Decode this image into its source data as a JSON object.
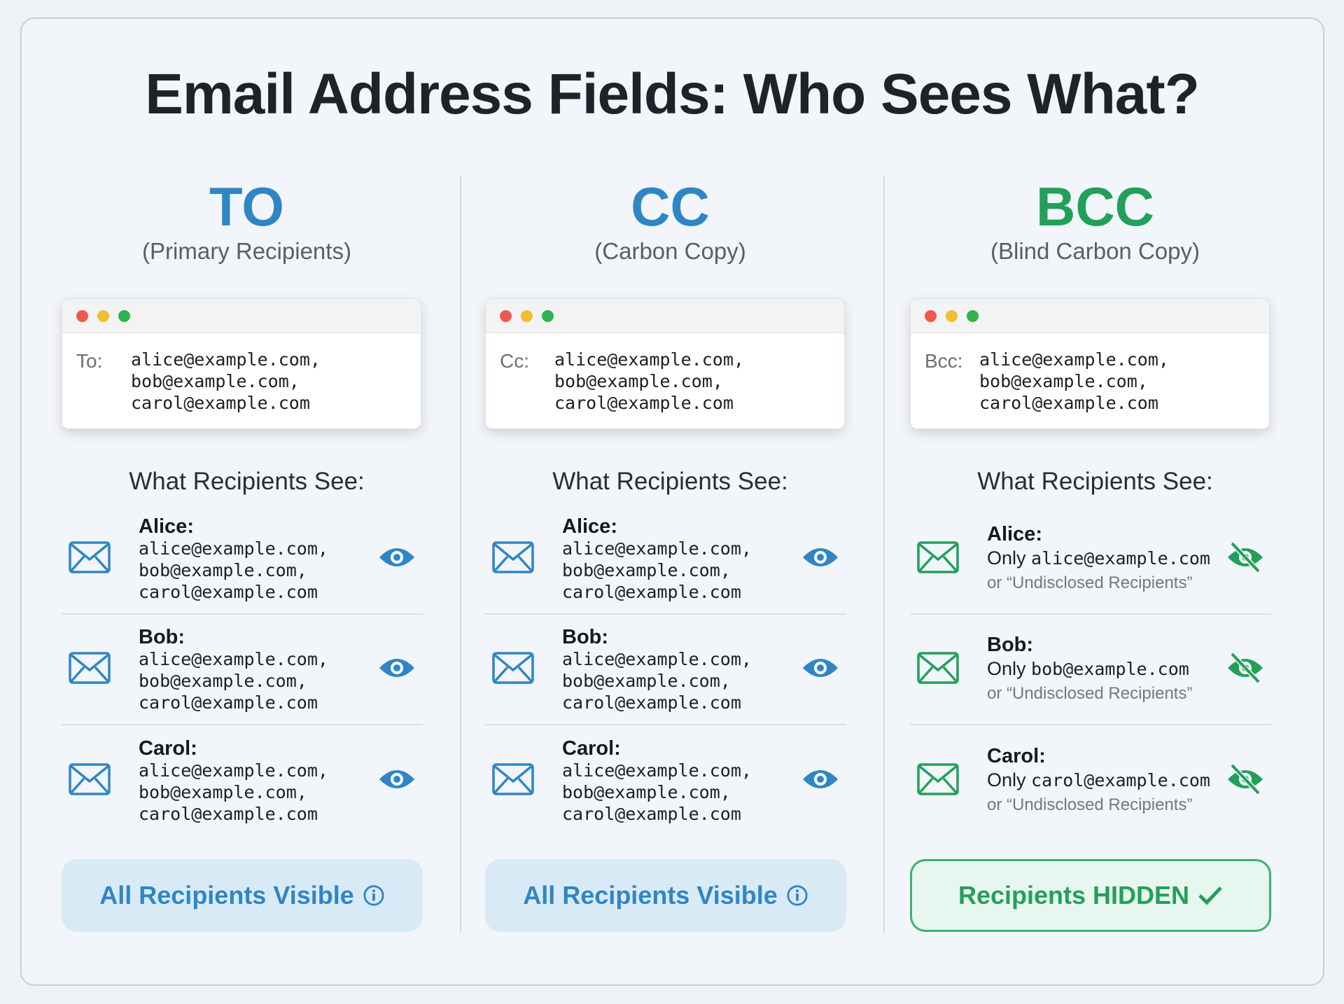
{
  "title": "Email Address Fields: Who Sees What?",
  "colors": {
    "blue": "#2f86c4",
    "green": "#22a05a",
    "red_dot": "#ec5a4f",
    "yellow_dot": "#f4bd2f",
    "green_dot": "#2fb350"
  },
  "columns": [
    {
      "heading": "TO",
      "subtitle": "(Primary Recipients)",
      "field_label": "To:",
      "field_lines": [
        "alice@example.com,",
        "bob@example.com,",
        "carol@example.com"
      ],
      "see_heading": "What Recipients See:",
      "rows": [
        {
          "name": "Alice:",
          "lines": [
            "alice@example.com,",
            "bob@example.com,",
            "carol@example.com"
          ],
          "icon": "eye-icon"
        },
        {
          "name": "Bob:",
          "lines": [
            "alice@example.com,",
            "bob@example.com,",
            "carol@example.com"
          ],
          "icon": "eye-icon"
        },
        {
          "name": "Carol:",
          "lines": [
            "alice@example.com,",
            "bob@example.com,",
            "carol@example.com"
          ],
          "icon": "eye-icon"
        }
      ],
      "status": "All Recipients Visible",
      "status_icon": "info-icon"
    },
    {
      "heading": "CC",
      "subtitle": "(Carbon Copy)",
      "field_label": "Cc:",
      "field_lines": [
        "alice@example.com,",
        "bob@example.com,",
        "carol@example.com"
      ],
      "see_heading": "What Recipients See:",
      "rows": [
        {
          "name": "Alice:",
          "lines": [
            "alice@example.com,",
            "bob@example.com,",
            "carol@example.com"
          ],
          "icon": "eye-icon"
        },
        {
          "name": "Bob:",
          "lines": [
            "alice@example.com,",
            "bob@example.com,",
            "carol@example.com"
          ],
          "icon": "eye-icon"
        },
        {
          "name": "Carol:",
          "lines": [
            "alice@example.com,",
            "bob@example.com,",
            "carol@example.com"
          ],
          "icon": "eye-icon"
        }
      ],
      "status": "All Recipients Visible",
      "status_icon": "info-icon"
    },
    {
      "heading": "BCC",
      "subtitle": "(Blind Carbon Copy)",
      "field_label": "Bcc:",
      "field_lines": [
        "alice@example.com,",
        "bob@example.com,",
        "carol@example.com"
      ],
      "see_heading": "What Recipients See:",
      "rows": [
        {
          "name": "Alice:",
          "only": "Only",
          "email": "alice@example.com",
          "alt": "or “Undisclosed Recipients”",
          "icon": "eye-slash-icon"
        },
        {
          "name": "Bob:",
          "only": "Only",
          "email": "bob@example.com",
          "alt": "or “Undisclosed Recipients”",
          "icon": "eye-slash-icon"
        },
        {
          "name": "Carol:",
          "only": "Only",
          "email": "carol@example.com",
          "alt": "or “Undisclosed Recipients”",
          "icon": "eye-slash-icon"
        }
      ],
      "status": "Recipients HIDDEN",
      "status_icon": "checkmark-icon"
    }
  ]
}
